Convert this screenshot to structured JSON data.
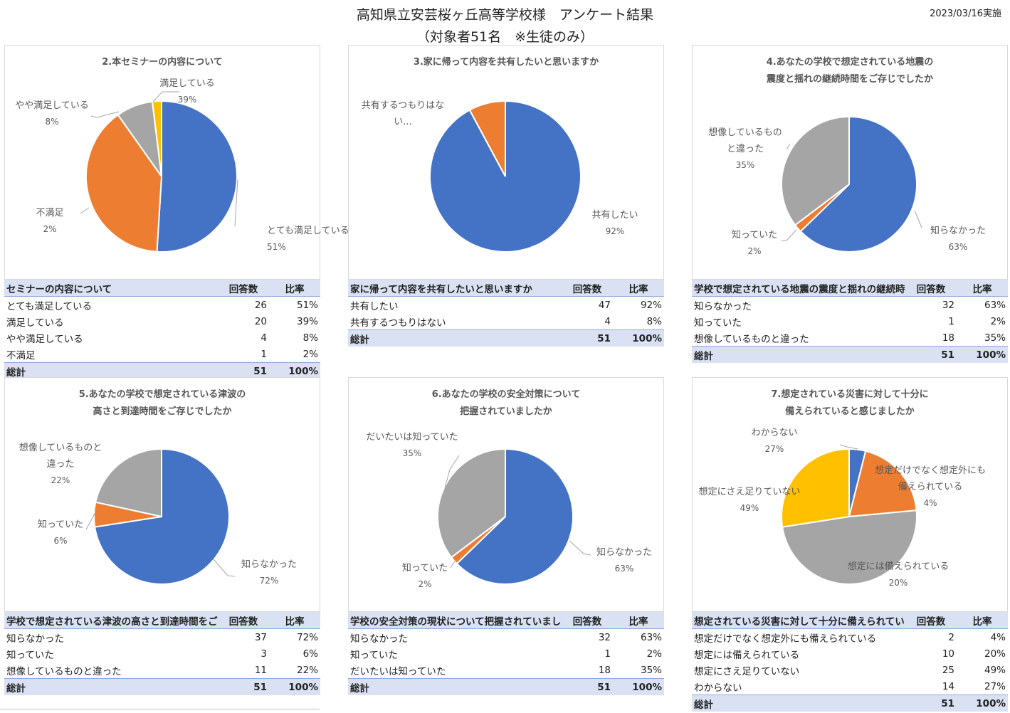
{
  "header": {
    "title_line1": "高知県立安芸桜ヶ丘高等学校様　アンケート結果",
    "title_line2": "（対象者51名　※生徒のみ）",
    "date": "2023/03/16実施"
  },
  "colors": {
    "blue": "#4472c4",
    "orange": "#ed7d31",
    "gray": "#a5a5a5",
    "yellow": "#ffc000",
    "header_bg": "#d9e1f2"
  },
  "panels": [
    {
      "title": [
        "2.本セミナーの内容について"
      ],
      "table": {
        "header": [
          "セミナーの内容について",
          "回答数",
          "比率"
        ],
        "rows": [
          [
            "とても満足している",
            "26",
            "51%"
          ],
          [
            "満足している",
            "20",
            "39%"
          ],
          [
            "やや満足している",
            "4",
            "8%"
          ],
          [
            "不満足",
            "1",
            "2%"
          ]
        ],
        "total": [
          "総計",
          "51",
          "100%"
        ]
      }
    },
    {
      "title": [
        "3.家に帰って内容を共有したいと思いますか"
      ],
      "table": {
        "header": [
          "家に帰って内容を共有したいと思いますか",
          "回答数",
          "比率"
        ],
        "rows": [
          [
            "共有したい",
            "47",
            "92%"
          ],
          [
            "共有するつもりはない",
            "4",
            "8%"
          ]
        ],
        "total": [
          "総計",
          "51",
          "100%"
        ]
      }
    },
    {
      "title": [
        "4.あなたの学校で想定されている地震の",
        "震度と揺れの継続時間をご存じでしたか"
      ],
      "table": {
        "header": [
          "学校で想定されている地震の震度と揺れの継続時",
          "回答数",
          "比率"
        ],
        "rows": [
          [
            "知らなかった",
            "32",
            "63%"
          ],
          [
            "知っていた",
            "1",
            "2%"
          ],
          [
            "想像しているものと違った",
            "18",
            "35%"
          ]
        ],
        "total": [
          "総計",
          "51",
          "100%"
        ]
      }
    },
    {
      "title": [
        "5.あなたの学校で想定されている津波の",
        "高さと到達時間をご存じでしたか"
      ],
      "table": {
        "header": [
          "学校で想定されている津波の高さと到達時間をご",
          "回答数",
          "比率"
        ],
        "rows": [
          [
            "知らなかった",
            "37",
            "72%"
          ],
          [
            "知っていた",
            "3",
            "6%"
          ],
          [
            "想像しているものと違った",
            "11",
            "22%"
          ]
        ],
        "total": [
          "総計",
          "51",
          "100%"
        ]
      }
    },
    {
      "title": [
        "6.あなたの学校の安全対策について",
        "把握されていましたか"
      ],
      "table": {
        "header": [
          "学校の安全対策の現状について把握されていましたか",
          "回答数",
          "比率"
        ],
        "rows": [
          [
            "知らなかった",
            "32",
            "63%"
          ],
          [
            "知っていた",
            "1",
            "2%"
          ],
          [
            "だいたいは知っていた",
            "18",
            "35%"
          ]
        ],
        "total": [
          "総計",
          "51",
          "100%"
        ]
      }
    },
    {
      "title": [
        "7.想定されている災害に対して十分に",
        "備えられていると感じましたか"
      ],
      "table": {
        "header": [
          "想定されている災害に対して十分に備えられていると感じましたか",
          "回答数",
          "比率"
        ],
        "rows": [
          [
            "想定だけでなく想定外にも備えられている",
            "2",
            "4%"
          ],
          [
            "想定には備えられている",
            "10",
            "20%"
          ],
          [
            "想定にさえ足りていない",
            "25",
            "49%"
          ],
          [
            "わからない",
            "14",
            "27%"
          ]
        ],
        "total": [
          "総計",
          "51",
          "100%"
        ]
      }
    }
  ],
  "chart_data": [
    {
      "type": "pie",
      "title": "2.本セミナーの内容について",
      "slices": [
        {
          "label": [
            "とても満足している"
          ],
          "value": 26,
          "pct": "51%",
          "color": "#4472c4"
        },
        {
          "label": [
            "満足している"
          ],
          "value": 20,
          "pct": "39%",
          "color": "#ed7d31"
        },
        {
          "label": [
            "やや満足している"
          ],
          "value": 4,
          "pct": "8%",
          "color": "#a5a5a5"
        },
        {
          "label": [
            "不満足"
          ],
          "value": 1,
          "pct": "2%",
          "color": "#ffc000"
        }
      ]
    },
    {
      "type": "pie",
      "title": "3.家に帰って内容を共有したいと思いますか",
      "slices": [
        {
          "label": [
            "共有したい"
          ],
          "value": 47,
          "pct": "92%",
          "color": "#4472c4"
        },
        {
          "label": [
            "共有するつもりはな",
            "い..."
          ],
          "value": 4,
          "pct": "",
          "color": "#ed7d31"
        }
      ]
    },
    {
      "type": "pie",
      "title": "4.あなたの学校で想定されている地震の震度と揺れの継続時間をご存じでしたか",
      "slices": [
        {
          "label": [
            "知らなかった"
          ],
          "value": 32,
          "pct": "63%",
          "color": "#4472c4"
        },
        {
          "label": [
            "知っていた"
          ],
          "value": 1,
          "pct": "2%",
          "color": "#ed7d31"
        },
        {
          "label": [
            "想像しているもの",
            "と違った"
          ],
          "value": 18,
          "pct": "35%",
          "color": "#a5a5a5"
        }
      ]
    },
    {
      "type": "pie",
      "title": "5.あなたの学校で想定されている津波の高さと到達時間をご存じでしたか",
      "slices": [
        {
          "label": [
            "知らなかった"
          ],
          "value": 37,
          "pct": "72%",
          "color": "#4472c4"
        },
        {
          "label": [
            "知っていた"
          ],
          "value": 3,
          "pct": "6%",
          "color": "#ed7d31"
        },
        {
          "label": [
            "想像しているものと",
            "違った"
          ],
          "value": 11,
          "pct": "22%",
          "color": "#a5a5a5"
        }
      ]
    },
    {
      "type": "pie",
      "title": "6.あなたの学校の安全対策について把握されていましたか",
      "slices": [
        {
          "label": [
            "知らなかった"
          ],
          "value": 32,
          "pct": "63%",
          "color": "#4472c4"
        },
        {
          "label": [
            "知っていた"
          ],
          "value": 1,
          "pct": "2%",
          "color": "#ed7d31"
        },
        {
          "label": [
            "だいたいは知っていた"
          ],
          "value": 18,
          "pct": "35%",
          "color": "#a5a5a5"
        }
      ]
    },
    {
      "type": "pie",
      "title": "7.想定されている災害に対して十分に備えられていると感じましたか",
      "slices": [
        {
          "label": [
            "想定だけでなく想定外にも",
            "備えられている"
          ],
          "value": 2,
          "pct": "4%",
          "color": "#4472c4"
        },
        {
          "label": [
            "想定には備えられている"
          ],
          "value": 10,
          "pct": "20%",
          "color": "#ed7d31"
        },
        {
          "label": [
            "想定にさえ足りていない"
          ],
          "value": 25,
          "pct": "49%",
          "color": "#a5a5a5"
        },
        {
          "label": [
            "わからない"
          ],
          "value": 14,
          "pct": "27%",
          "color": "#ffc000"
        }
      ]
    }
  ]
}
